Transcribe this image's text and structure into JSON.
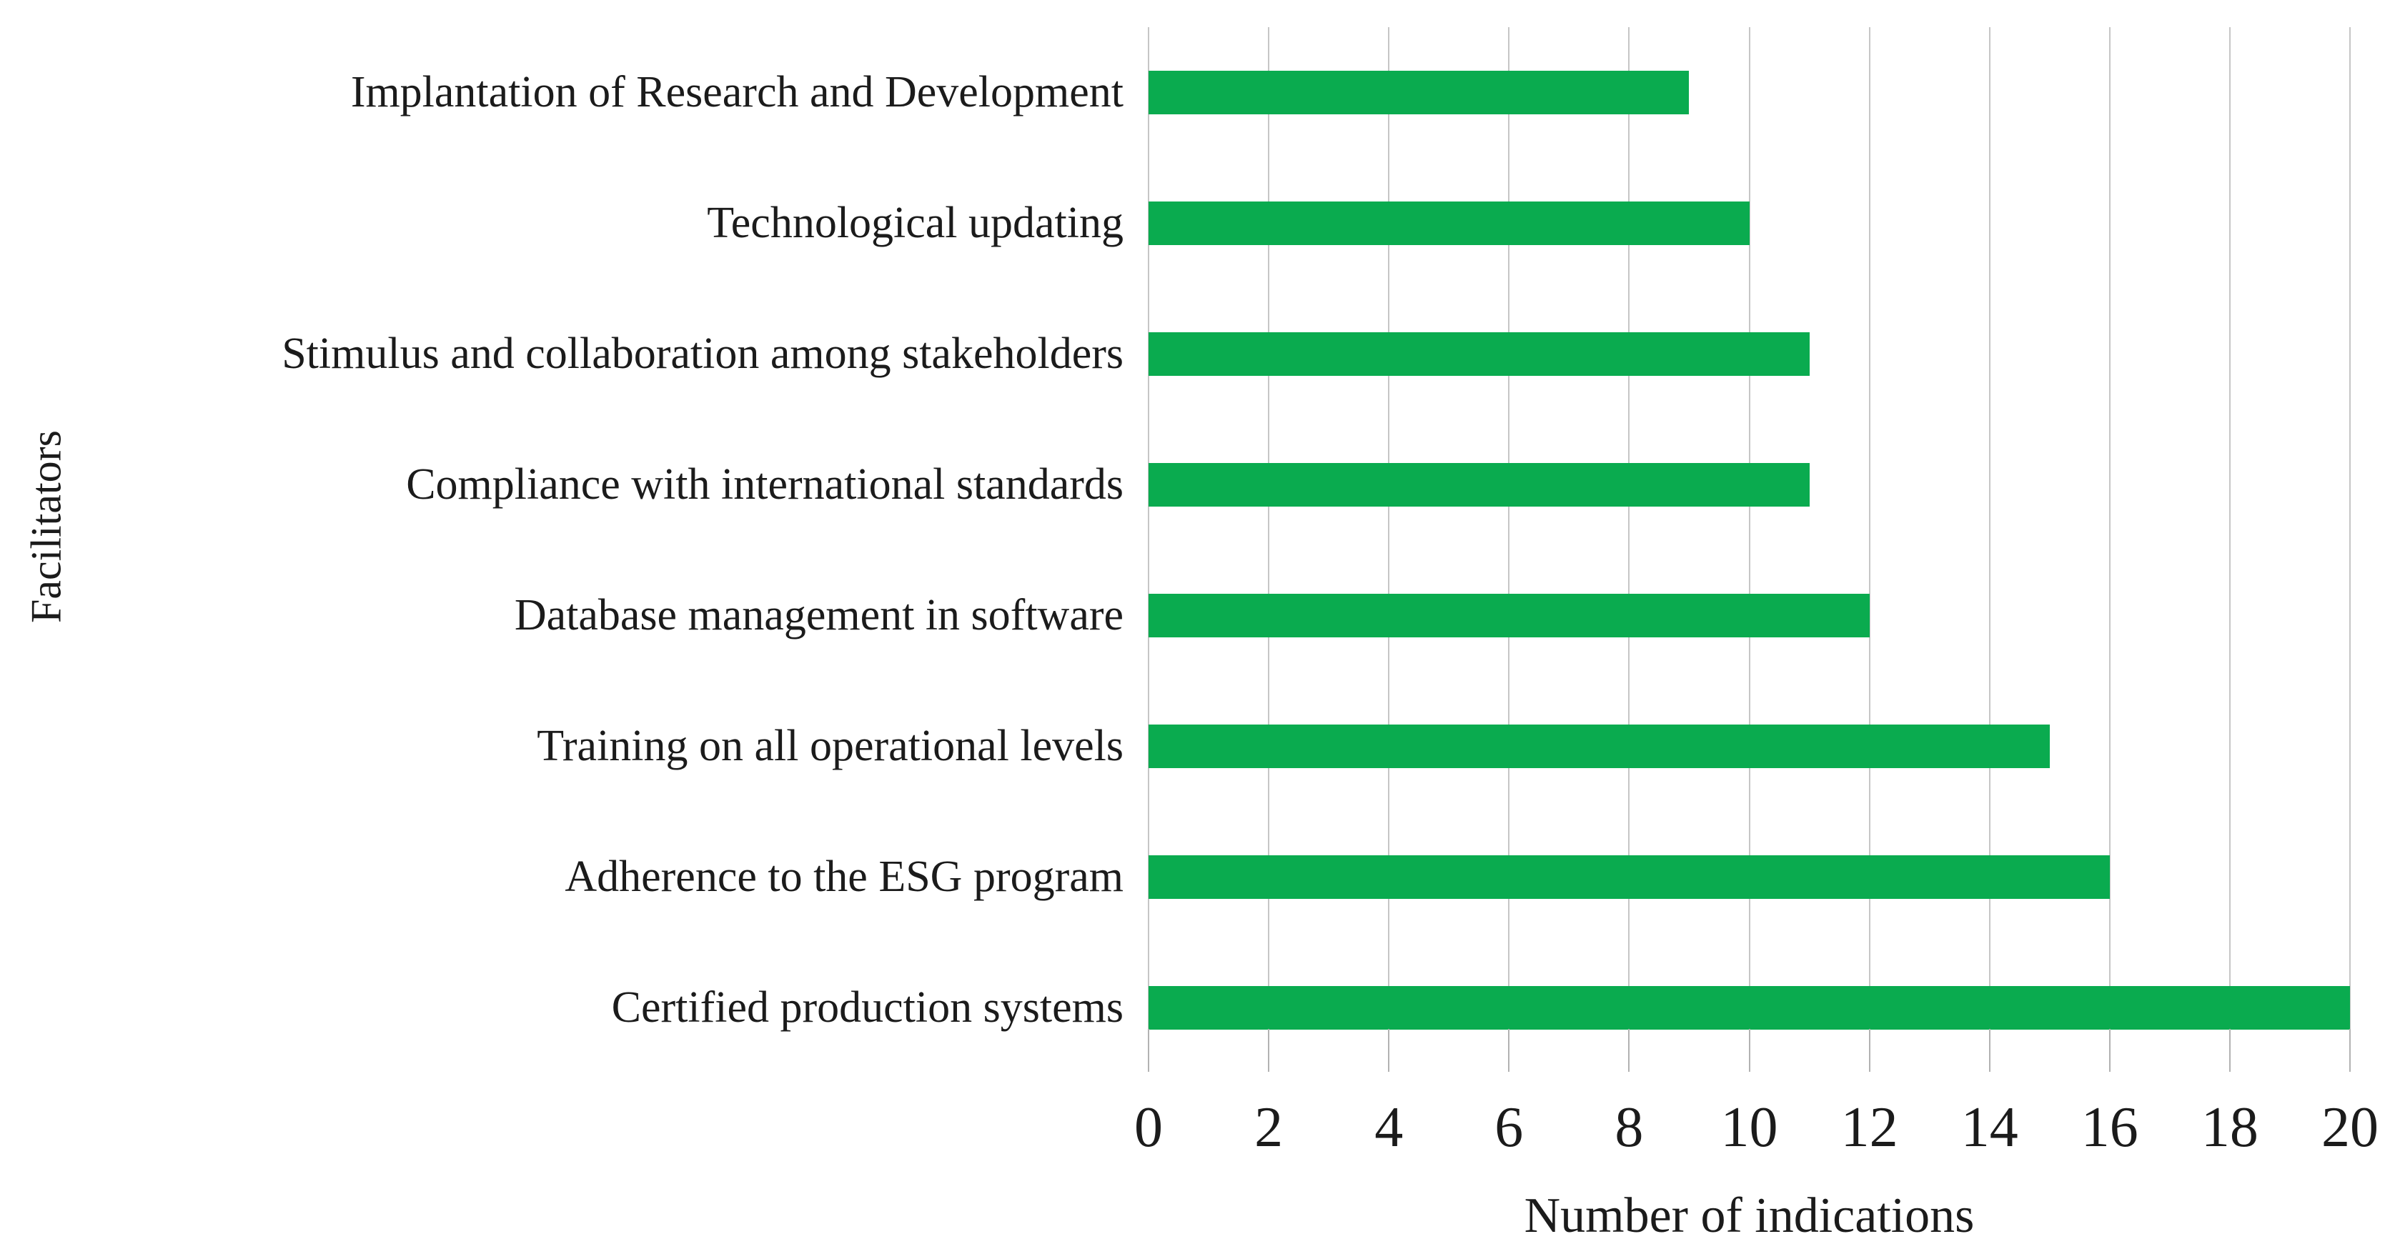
{
  "chart_data": {
    "type": "bar",
    "orientation": "horizontal",
    "title": "",
    "categories": [
      "Implantation of Research and Development",
      "Technological updating",
      "Stimulus and collaboration among stakeholders",
      "Compliance with international standards",
      "Database management in software",
      "Training on all operational levels",
      "Adherence to the ESG program",
      "Certified production systems"
    ],
    "values": [
      9,
      10,
      11,
      11,
      12,
      15,
      16,
      20
    ],
    "xlabel": "Number of indications",
    "ylabel": "Facilitators",
    "xlim": [
      0,
      20
    ],
    "xticks": [
      0,
      2,
      4,
      6,
      8,
      10,
      12,
      14,
      16,
      18,
      20
    ],
    "grid": "vertical",
    "legend": "none",
    "bar_color": "#0aab4f",
    "gridline_color": "#c6c6c6",
    "tick_color": "#b2b2b2",
    "text_color": "#1b1b1b",
    "background": "#ffffff"
  }
}
